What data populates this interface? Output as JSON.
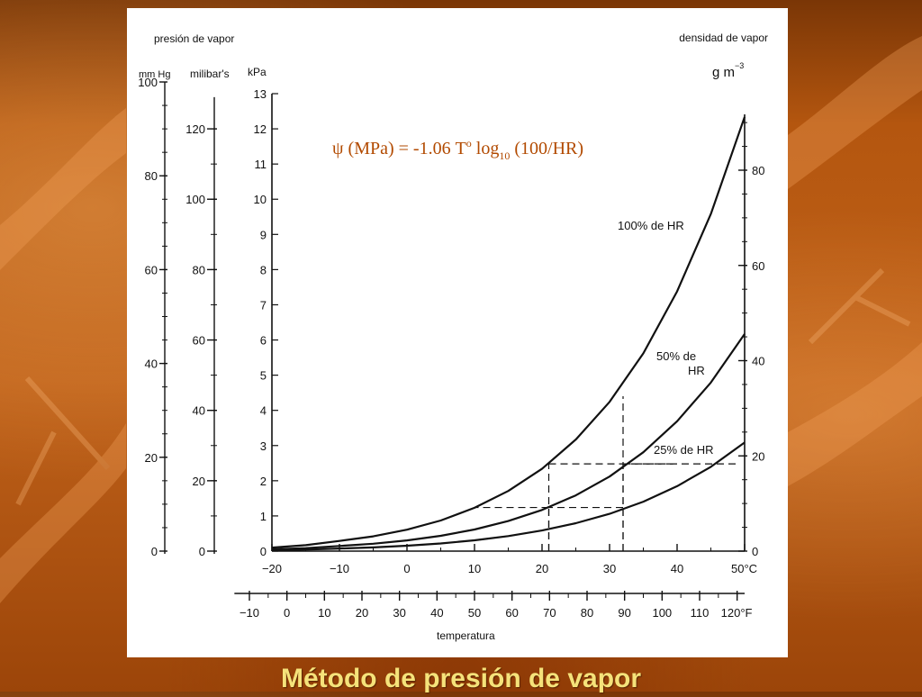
{
  "slide": {
    "title": "Método de presión de vapor",
    "equation": {
      "psi": "ψ",
      "left": " (MPa) = -1.06 T",
      "sup": "o",
      "log": " log",
      "sub": "10",
      "right": " (100/HR)"
    }
  },
  "colors": {
    "title": "#f5e27a",
    "equation": "#b24a00",
    "background": "#b4560f",
    "panel": "#ffffff",
    "ink": "#111111"
  },
  "chart_data": {
    "type": "line",
    "x_unit": "°C",
    "y_unit": "kPa",
    "xlim": [
      -20,
      50
    ],
    "ylim": [
      0,
      13
    ],
    "x": [
      -20,
      -15,
      -10,
      -5,
      0,
      5,
      10,
      15,
      20,
      25,
      30,
      35,
      40,
      45,
      50
    ],
    "series": [
      {
        "name": "100% de HR",
        "values": [
          0.1,
          0.17,
          0.29,
          0.42,
          0.61,
          0.87,
          1.23,
          1.71,
          2.34,
          3.17,
          4.24,
          5.62,
          7.38,
          9.58,
          12.34
        ]
      },
      {
        "name": "50% de HR",
        "values": [
          0.05,
          0.085,
          0.145,
          0.21,
          0.305,
          0.435,
          0.615,
          0.855,
          1.17,
          1.585,
          2.12,
          2.81,
          3.69,
          4.79,
          6.17
        ]
      },
      {
        "name": "25% de HR",
        "values": [
          0.025,
          0.043,
          0.073,
          0.105,
          0.153,
          0.218,
          0.308,
          0.428,
          0.585,
          0.793,
          1.06,
          1.405,
          1.845,
          2.395,
          3.085
        ]
      }
    ],
    "curve_labels": [
      {
        "series": "100% de HR",
        "lines": [
          "100% de HR"
        ]
      },
      {
        "series": "50% de HR",
        "lines": [
          "50% de",
          "HR"
        ]
      },
      {
        "series": "25% de HR",
        "lines": [
          "25% de HR"
        ]
      }
    ],
    "guides": [
      {
        "x": 21,
        "y": 2.48
      },
      {
        "x": 32,
        "y": 4.4
      },
      {
        "x": 21,
        "y": 1.24
      },
      {
        "x": 32,
        "y": 2.48
      }
    ],
    "axes": {
      "top_left_label": "presión de vapor",
      "top_right_label": "densidad de vapor",
      "bottom_label": "temperatura",
      "kpa": {
        "label": "kPa",
        "ticks": [
          0,
          1,
          2,
          3,
          4,
          5,
          6,
          7,
          8,
          9,
          10,
          11,
          12,
          13
        ]
      },
      "millibar": {
        "label": "milibar's",
        "ticks": [
          0,
          20,
          40,
          60,
          80,
          100,
          120
        ]
      },
      "mmhg": {
        "label": "mm Hg",
        "ticks": [
          0,
          20,
          40,
          60,
          80,
          100
        ]
      },
      "density": {
        "label_base": "g m",
        "label_sup": "−3",
        "ticks": [
          0,
          20,
          40,
          60,
          80
        ]
      },
      "celsius": {
        "ticks": [
          "−20",
          "−10",
          "0",
          "10",
          "20",
          "30",
          "40",
          "50°C"
        ],
        "values": [
          -20,
          -10,
          0,
          10,
          20,
          30,
          40,
          50
        ]
      },
      "fahrenheit": {
        "ticks": [
          "−10",
          "0",
          "10",
          "20",
          "30",
          "40",
          "50",
          "60",
          "70",
          "80",
          "90",
          "100",
          "110",
          "120°F"
        ],
        "values": [
          -10,
          0,
          10,
          20,
          30,
          40,
          50,
          60,
          70,
          80,
          90,
          100,
          110,
          120
        ]
      }
    }
  }
}
